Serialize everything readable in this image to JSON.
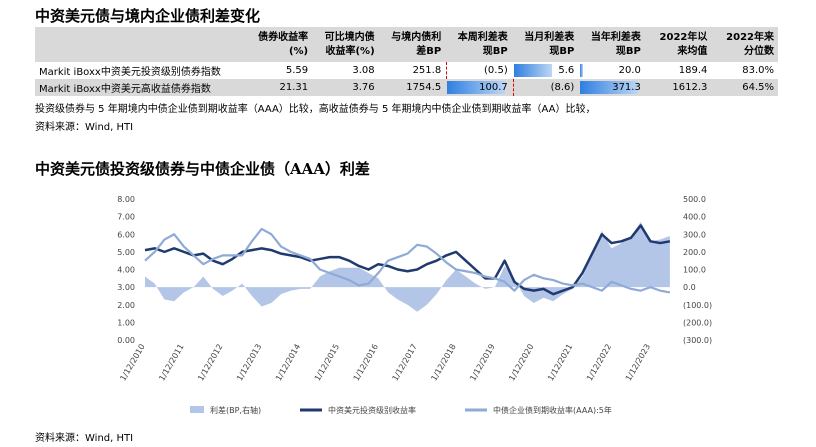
{
  "header": {
    "title": "中资美元债与境内企业债利差变化"
  },
  "table": {
    "columns": [
      "债券收益率(%)",
      "可比境内债收益率(%)",
      "与境内债利差BP",
      "本周利差表现BP",
      "当月利差表现BP",
      "当年利差表现BP",
      "2022年以来均值",
      "2022年来分位数"
    ],
    "rows": [
      [
        "Markit iBoxx中资美元投资级别债券指数",
        "5.59",
        "3.08",
        "251.8",
        "(0.5)",
        "5.6",
        "20.0",
        "189.4",
        "83.0%"
      ],
      [
        "Markit iBoxx中资美元高收益债券指数",
        "21.31",
        "3.76",
        "1754.5",
        "100.7",
        "(8.6)",
        "371.3",
        "1612.3",
        "64.5%"
      ]
    ]
  },
  "notes": [
    "投资级债券与 5 年期境内中债企业债到期收益率（AAA）比较，高收益债券与 5 年期境内中债企业债到期收益率（AA）比较，",
    "资料来源：Wind, HTI"
  ],
  "chart_data": {
    "type": "line",
    "title": "中资美元债投资级债券与中债企业债（AAA）利差",
    "categories": [
      "1/12/2010",
      null,
      null,
      null,
      "1/12/2011",
      null,
      null,
      null,
      "1/12/2012",
      null,
      null,
      null,
      "1/12/2013",
      null,
      null,
      null,
      "1/12/2014",
      null,
      null,
      null,
      "1/12/2015",
      null,
      null,
      null,
      "1/12/2016",
      null,
      null,
      null,
      "1/12/2017",
      null,
      null,
      null,
      "1/12/2018",
      null,
      null,
      null,
      "1/12/2019",
      null,
      null,
      null,
      "1/12/2020",
      null,
      null,
      null,
      "1/12/2021",
      null,
      null,
      null,
      "1/12/2022",
      null,
      null,
      null,
      "1/12/2023",
      null,
      null
    ],
    "series": [
      {
        "name": "利差(BP,右轴)",
        "color": "#b4c6e7",
        "axis": "y2",
        "kind": "area",
        "values": [
          60,
          20,
          -70,
          -80,
          -30,
          0,
          60,
          -10,
          -50,
          -20,
          20,
          -50,
          -110,
          -90,
          -40,
          -20,
          -10,
          -10,
          60,
          90,
          110,
          110,
          110,
          80,
          50,
          -30,
          -70,
          -100,
          -140,
          -100,
          -40,
          40,
          100,
          60,
          20,
          -10,
          0,
          120,
          50,
          -50,
          -90,
          -60,
          -80,
          -40,
          -10,
          60,
          190,
          320,
          220,
          250,
          290,
          370,
          260,
          270,
          290
        ]
      },
      {
        "name": "中资美元投资级别收益率",
        "color": "#1f3a6e",
        "values": [
          5.1,
          5.2,
          5.0,
          5.2,
          5.0,
          4.8,
          4.9,
          4.5,
          4.3,
          4.6,
          5.0,
          5.1,
          5.2,
          5.1,
          4.9,
          4.8,
          4.7,
          4.5,
          4.6,
          4.7,
          4.7,
          4.5,
          4.2,
          4.0,
          4.3,
          4.2,
          4.0,
          3.9,
          4.0,
          4.3,
          4.5,
          4.8,
          5.0,
          4.5,
          4.0,
          3.5,
          3.5,
          4.5,
          3.3,
          2.9,
          2.8,
          2.9,
          2.6,
          2.8,
          3.0,
          3.8,
          4.9,
          6.0,
          5.5,
          5.6,
          5.8,
          6.5,
          5.6,
          5.5,
          5.6
        ]
      },
      {
        "name": "中债企业债到期收益率(AAA):5年",
        "color": "#8eaad6",
        "values": [
          4.5,
          5.0,
          5.7,
          6.0,
          5.3,
          4.8,
          4.3,
          4.6,
          4.8,
          4.8,
          4.8,
          5.6,
          6.3,
          6.0,
          5.3,
          5.0,
          4.8,
          4.6,
          4.0,
          3.8,
          3.6,
          3.4,
          3.1,
          3.2,
          3.8,
          4.5,
          4.7,
          4.9,
          5.4,
          5.3,
          4.9,
          4.4,
          4.0,
          3.9,
          3.8,
          3.6,
          3.5,
          3.3,
          2.8,
          3.4,
          3.7,
          3.5,
          3.4,
          3.2,
          3.1,
          3.2,
          3.0,
          2.8,
          3.3,
          3.1,
          2.9,
          2.8,
          3.0,
          2.8,
          2.7
        ]
      }
    ],
    "ylim": [
      0,
      8
    ],
    "yticks": [
      {
        "value": 0,
        "label": "0.00"
      },
      {
        "value": 1,
        "label": "1.00"
      },
      {
        "value": 2,
        "label": "2.00"
      },
      {
        "value": 3,
        "label": "3.00"
      },
      {
        "value": 4,
        "label": "4.00"
      },
      {
        "value": 5,
        "label": "5.00"
      },
      {
        "value": 6,
        "label": "6.00"
      },
      {
        "value": 7,
        "label": "7.00"
      },
      {
        "value": 8,
        "label": "8.00"
      }
    ],
    "y2lim": [
      -300,
      500
    ],
    "y2ticks": [
      {
        "value": -300,
        "label": "(300.0)"
      },
      {
        "value": -200,
        "label": "(200.0)"
      },
      {
        "value": -100,
        "label": "(100.0)"
      },
      {
        "value": 0,
        "label": "0.0"
      },
      {
        "value": 100,
        "label": "100.0"
      },
      {
        "value": 200,
        "label": "200.0"
      },
      {
        "value": 300,
        "label": "300.0"
      },
      {
        "value": 400,
        "label": "400.0"
      },
      {
        "value": 500,
        "label": "500.0"
      }
    ],
    "legend": "bottom"
  },
  "source": "资料来源：Wind, HTI"
}
